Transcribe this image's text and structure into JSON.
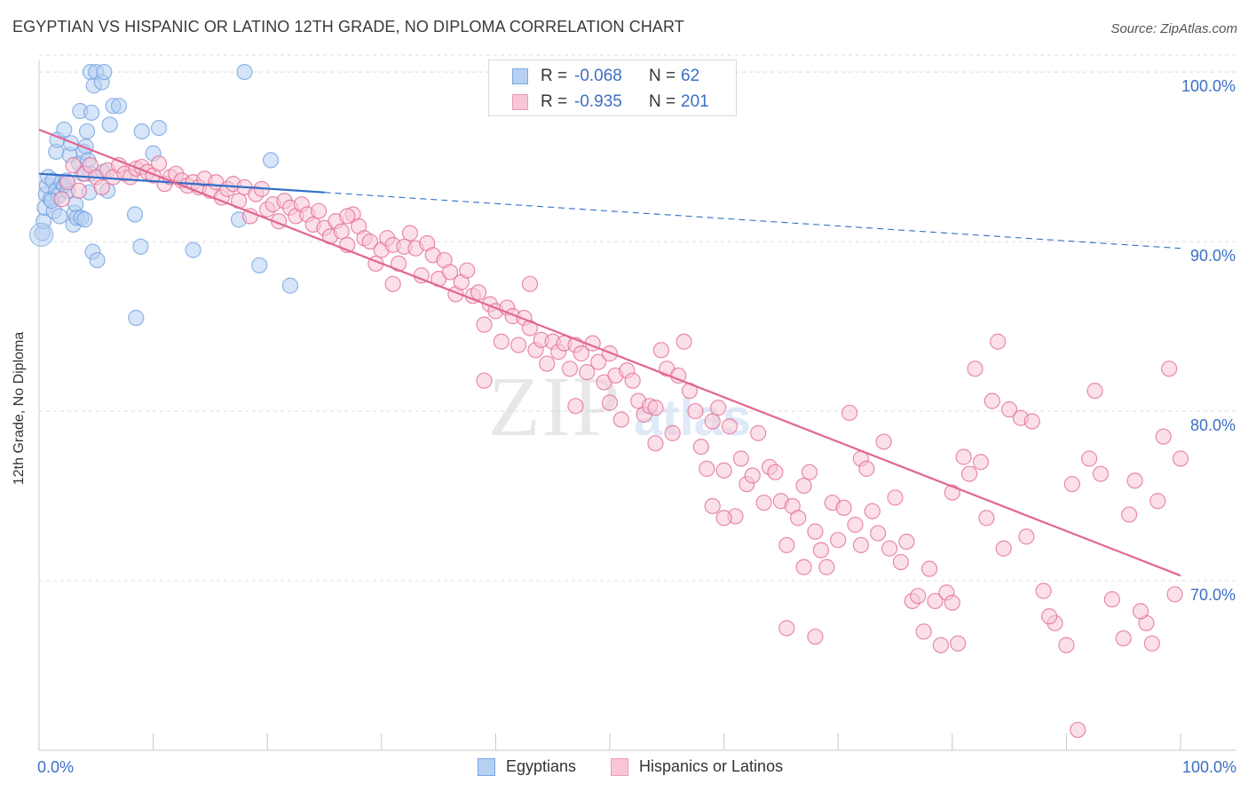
{
  "title": "EGYPTIAN VS HISPANIC OR LATINO 12TH GRADE, NO DIPLOMA CORRELATION CHART",
  "source": "Source: ZipAtlas.com",
  "watermark": {
    "zip": "ZIP",
    "atlas": "atlas"
  },
  "stats": [
    {
      "r_label": "R =",
      "r_value": "-0.068",
      "n_label": "N =",
      "n_value": "62",
      "fill": "#b6d0f3",
      "stroke": "#7aa6e0"
    },
    {
      "r_label": "R =",
      "r_value": "-0.935",
      "n_label": "N =",
      "n_value": "201",
      "fill": "#f8c6d6",
      "stroke": "#ec9bb6"
    }
  ],
  "legend": [
    {
      "label": "Egyptians",
      "fill": "#b6d0f3",
      "stroke": "#7aa6e0"
    },
    {
      "label": "Hispanics or Latinos",
      "fill": "#f8c6d6",
      "stroke": "#ec9bb6"
    }
  ],
  "chart_data": {
    "type": "scatter",
    "ylabel": "12th Grade, No Diploma",
    "xlim": [
      0,
      100
    ],
    "ylim": [
      60,
      101
    ],
    "x_tick_labels": [
      "0.0%",
      "100.0%"
    ],
    "y_ticks": [
      70,
      80,
      90,
      100
    ],
    "y_tick_labels": [
      "70.0%",
      "80.0%",
      "90.0%",
      "100.0%"
    ],
    "grid": "horizontal dashed",
    "series": [
      {
        "name": "Egyptians",
        "color": "#6d9fdf",
        "fill": "#b6d0f3",
        "trend": {
          "x0": 0,
          "y0": 94.0,
          "x1": 25,
          "y1": 92.9,
          "x_end": 100,
          "y_end": 89.6
        },
        "points": [
          [
            0.3,
            90.5
          ],
          [
            0.4,
            91.2
          ],
          [
            0.5,
            92.0
          ],
          [
            0.6,
            92.8
          ],
          [
            0.7,
            93.3
          ],
          [
            0.8,
            93.8
          ],
          [
            1.0,
            92.5
          ],
          [
            1.2,
            93.6
          ],
          [
            1.3,
            91.8
          ],
          [
            1.5,
            93.0
          ],
          [
            1.5,
            95.3
          ],
          [
            1.6,
            96.0
          ],
          [
            1.7,
            92.7
          ],
          [
            1.8,
            91.5
          ],
          [
            2.0,
            93.5
          ],
          [
            2.2,
            93.3
          ],
          [
            2.2,
            96.6
          ],
          [
            2.5,
            93.0
          ],
          [
            2.7,
            95.1
          ],
          [
            2.8,
            95.8
          ],
          [
            3.0,
            91.0
          ],
          [
            3.1,
            91.7
          ],
          [
            3.2,
            92.2
          ],
          [
            3.3,
            91.4
          ],
          [
            3.5,
            94.6
          ],
          [
            3.6,
            97.7
          ],
          [
            3.7,
            91.4
          ],
          [
            3.9,
            95.3
          ],
          [
            4.0,
            91.3
          ],
          [
            4.1,
            95.6
          ],
          [
            4.2,
            96.5
          ],
          [
            4.3,
            94.8
          ],
          [
            4.4,
            92.9
          ],
          [
            4.5,
            94.0
          ],
          [
            4.5,
            100.0
          ],
          [
            4.6,
            97.6
          ],
          [
            4.7,
            89.4
          ],
          [
            4.8,
            99.2
          ],
          [
            5.0,
            100.0
          ],
          [
            5.1,
            88.9
          ],
          [
            5.5,
            99.4
          ],
          [
            5.6,
            94.1
          ],
          [
            5.7,
            100.0
          ],
          [
            6.0,
            93.0
          ],
          [
            6.2,
            96.9
          ],
          [
            6.5,
            98.0
          ],
          [
            7.0,
            98.0
          ],
          [
            8.4,
            91.6
          ],
          [
            8.5,
            85.5
          ],
          [
            8.9,
            89.7
          ],
          [
            9.0,
            96.5
          ],
          [
            10.0,
            95.2
          ],
          [
            10.5,
            96.7
          ],
          [
            13.5,
            89.5
          ],
          [
            17.5,
            91.3
          ],
          [
            18.0,
            100.0
          ],
          [
            19.3,
            88.6
          ],
          [
            20.3,
            94.8
          ],
          [
            22.0,
            87.4
          ],
          [
            3.8,
            94.0
          ],
          [
            2.4,
            93.6
          ],
          [
            1.1,
            92.4
          ]
        ]
      },
      {
        "name": "Hispanics or Latinos",
        "color": "#e16592",
        "fill": "#f8c6d6",
        "trend": {
          "x0": 0,
          "y0": 96.6,
          "x1": 100,
          "y1": 70.3
        },
        "points": [
          [
            2.0,
            92.5
          ],
          [
            2.5,
            93.5
          ],
          [
            3.0,
            94.5
          ],
          [
            3.5,
            93.0
          ],
          [
            4.0,
            94.0
          ],
          [
            4.5,
            94.5
          ],
          [
            5.0,
            93.8
          ],
          [
            5.5,
            93.2
          ],
          [
            6.0,
            94.2
          ],
          [
            6.5,
            93.8
          ],
          [
            7.0,
            94.5
          ],
          [
            7.5,
            94.0
          ],
          [
            8.0,
            93.8
          ],
          [
            8.5,
            94.3
          ],
          [
            9.0,
            94.4
          ],
          [
            9.5,
            94.1
          ],
          [
            10.0,
            93.9
          ],
          [
            10.5,
            94.6
          ],
          [
            11.0,
            93.4
          ],
          [
            11.5,
            93.8
          ],
          [
            12.0,
            94.0
          ],
          [
            12.5,
            93.6
          ],
          [
            13.0,
            93.3
          ],
          [
            13.5,
            93.5
          ],
          [
            14.0,
            93.2
          ],
          [
            14.5,
            93.7
          ],
          [
            15.0,
            93.0
          ],
          [
            15.5,
            93.5
          ],
          [
            16.0,
            92.6
          ],
          [
            16.5,
            93.1
          ],
          [
            17.0,
            93.4
          ],
          [
            17.5,
            92.4
          ],
          [
            18.0,
            93.2
          ],
          [
            18.5,
            91.5
          ],
          [
            19.0,
            92.8
          ],
          [
            19.5,
            93.1
          ],
          [
            20.0,
            91.9
          ],
          [
            20.5,
            92.2
          ],
          [
            21.0,
            91.2
          ],
          [
            21.5,
            92.4
          ],
          [
            22.0,
            92.0
          ],
          [
            22.5,
            91.5
          ],
          [
            23.0,
            92.2
          ],
          [
            23.5,
            91.6
          ],
          [
            24.0,
            91.0
          ],
          [
            24.5,
            91.8
          ],
          [
            25.0,
            90.8
          ],
          [
            25.5,
            90.3
          ],
          [
            26.0,
            91.2
          ],
          [
            26.5,
            90.6
          ],
          [
            27.0,
            89.8
          ],
          [
            27.5,
            91.6
          ],
          [
            28.0,
            90.9
          ],
          [
            28.5,
            90.2
          ],
          [
            29.0,
            90.0
          ],
          [
            29.5,
            88.7
          ],
          [
            30.0,
            89.5
          ],
          [
            30.5,
            90.2
          ],
          [
            31.0,
            89.8
          ],
          [
            31.5,
            88.7
          ],
          [
            32.0,
            89.7
          ],
          [
            32.5,
            90.5
          ],
          [
            33.0,
            89.6
          ],
          [
            33.5,
            88.0
          ],
          [
            34.0,
            89.9
          ],
          [
            34.5,
            89.2
          ],
          [
            35.0,
            87.8
          ],
          [
            35.5,
            88.9
          ],
          [
            36.0,
            88.2
          ],
          [
            36.5,
            86.9
          ],
          [
            37.0,
            87.6
          ],
          [
            37.5,
            88.3
          ],
          [
            38.0,
            86.8
          ],
          [
            38.5,
            87.0
          ],
          [
            39.0,
            85.1
          ],
          [
            39.5,
            86.3
          ],
          [
            40.0,
            85.9
          ],
          [
            40.5,
            84.1
          ],
          [
            41.0,
            86.1
          ],
          [
            41.5,
            85.6
          ],
          [
            42.0,
            83.9
          ],
          [
            42.5,
            85.5
          ],
          [
            43.0,
            84.9
          ],
          [
            43.5,
            83.6
          ],
          [
            44.0,
            84.2
          ],
          [
            44.5,
            82.8
          ],
          [
            45.0,
            84.1
          ],
          [
            45.5,
            83.5
          ],
          [
            46.0,
            84.0
          ],
          [
            46.5,
            82.5
          ],
          [
            47.0,
            83.9
          ],
          [
            47.5,
            83.4
          ],
          [
            48.0,
            82.3
          ],
          [
            48.5,
            84.0
          ],
          [
            49.0,
            82.9
          ],
          [
            49.5,
            81.7
          ],
          [
            50.0,
            83.4
          ],
          [
            50.5,
            82.1
          ],
          [
            51.0,
            79.5
          ],
          [
            51.5,
            82.4
          ],
          [
            52.0,
            81.8
          ],
          [
            52.5,
            80.6
          ],
          [
            53.0,
            79.8
          ],
          [
            53.5,
            80.3
          ],
          [
            54.0,
            78.1
          ],
          [
            54.5,
            83.6
          ],
          [
            55.0,
            82.5
          ],
          [
            55.5,
            78.7
          ],
          [
            56.0,
            82.1
          ],
          [
            56.5,
            84.1
          ],
          [
            57.0,
            81.2
          ],
          [
            57.5,
            80.0
          ],
          [
            58.0,
            77.9
          ],
          [
            58.5,
            76.6
          ],
          [
            59.0,
            79.4
          ],
          [
            59.5,
            80.2
          ],
          [
            60.0,
            76.5
          ],
          [
            60.5,
            79.1
          ],
          [
            61.0,
            73.8
          ],
          [
            61.5,
            77.2
          ],
          [
            62.0,
            75.7
          ],
          [
            62.5,
            76.2
          ],
          [
            63.0,
            78.7
          ],
          [
            63.5,
            74.6
          ],
          [
            64.0,
            76.7
          ],
          [
            64.5,
            76.4
          ],
          [
            65.0,
            74.7
          ],
          [
            65.5,
            72.1
          ],
          [
            66.0,
            74.4
          ],
          [
            66.5,
            73.7
          ],
          [
            67.0,
            75.6
          ],
          [
            67.5,
            76.4
          ],
          [
            68.0,
            72.9
          ],
          [
            68.5,
            71.8
          ],
          [
            69.0,
            70.8
          ],
          [
            69.5,
            74.6
          ],
          [
            70.0,
            72.4
          ],
          [
            70.5,
            74.3
          ],
          [
            71.0,
            79.9
          ],
          [
            71.5,
            73.3
          ],
          [
            72.0,
            77.2
          ],
          [
            72.5,
            76.6
          ],
          [
            73.0,
            74.1
          ],
          [
            73.5,
            72.8
          ],
          [
            74.0,
            78.2
          ],
          [
            74.5,
            71.9
          ],
          [
            75.0,
            74.9
          ],
          [
            75.5,
            71.1
          ],
          [
            76.0,
            72.3
          ],
          [
            76.5,
            68.8
          ],
          [
            77.0,
            69.1
          ],
          [
            77.5,
            67.0
          ],
          [
            78.0,
            70.7
          ],
          [
            78.5,
            68.8
          ],
          [
            79.0,
            66.2
          ],
          [
            79.5,
            69.3
          ],
          [
            80.0,
            68.7
          ],
          [
            80.5,
            66.3
          ],
          [
            81.0,
            77.3
          ],
          [
            81.5,
            76.3
          ],
          [
            82.0,
            82.5
          ],
          [
            82.5,
            77.0
          ],
          [
            83.0,
            73.7
          ],
          [
            83.5,
            80.6
          ],
          [
            84.0,
            84.1
          ],
          [
            65.5,
            67.2
          ],
          [
            68.0,
            66.7
          ],
          [
            59.0,
            74.4
          ],
          [
            39.0,
            81.8
          ],
          [
            47.0,
            80.3
          ],
          [
            54.0,
            80.2
          ],
          [
            85.0,
            80.1
          ],
          [
            86.0,
            79.6
          ],
          [
            87.0,
            79.4
          ],
          [
            88.0,
            69.4
          ],
          [
            89.0,
            67.5
          ],
          [
            90.0,
            66.2
          ],
          [
            91.0,
            61.2
          ],
          [
            92.0,
            77.2
          ],
          [
            93.0,
            76.3
          ],
          [
            94.0,
            68.9
          ],
          [
            95.0,
            66.6
          ],
          [
            96.0,
            75.9
          ],
          [
            97.0,
            67.5
          ],
          [
            98.0,
            74.7
          ],
          [
            99.0,
            82.5
          ],
          [
            100.0,
            77.2
          ],
          [
            96.5,
            68.2
          ],
          [
            97.5,
            66.3
          ],
          [
            31.0,
            87.5
          ],
          [
            43.0,
            87.5
          ],
          [
            27.0,
            91.5
          ],
          [
            50.0,
            80.5
          ],
          [
            60.0,
            73.7
          ],
          [
            72.0,
            72.1
          ],
          [
            80.0,
            75.2
          ],
          [
            86.5,
            72.6
          ],
          [
            90.5,
            75.7
          ],
          [
            92.5,
            81.2
          ],
          [
            95.5,
            73.9
          ],
          [
            98.5,
            78.5
          ],
          [
            99.5,
            69.2
          ],
          [
            88.5,
            67.9
          ],
          [
            84.5,
            71.9
          ],
          [
            67.0,
            70.8
          ]
        ]
      }
    ]
  }
}
